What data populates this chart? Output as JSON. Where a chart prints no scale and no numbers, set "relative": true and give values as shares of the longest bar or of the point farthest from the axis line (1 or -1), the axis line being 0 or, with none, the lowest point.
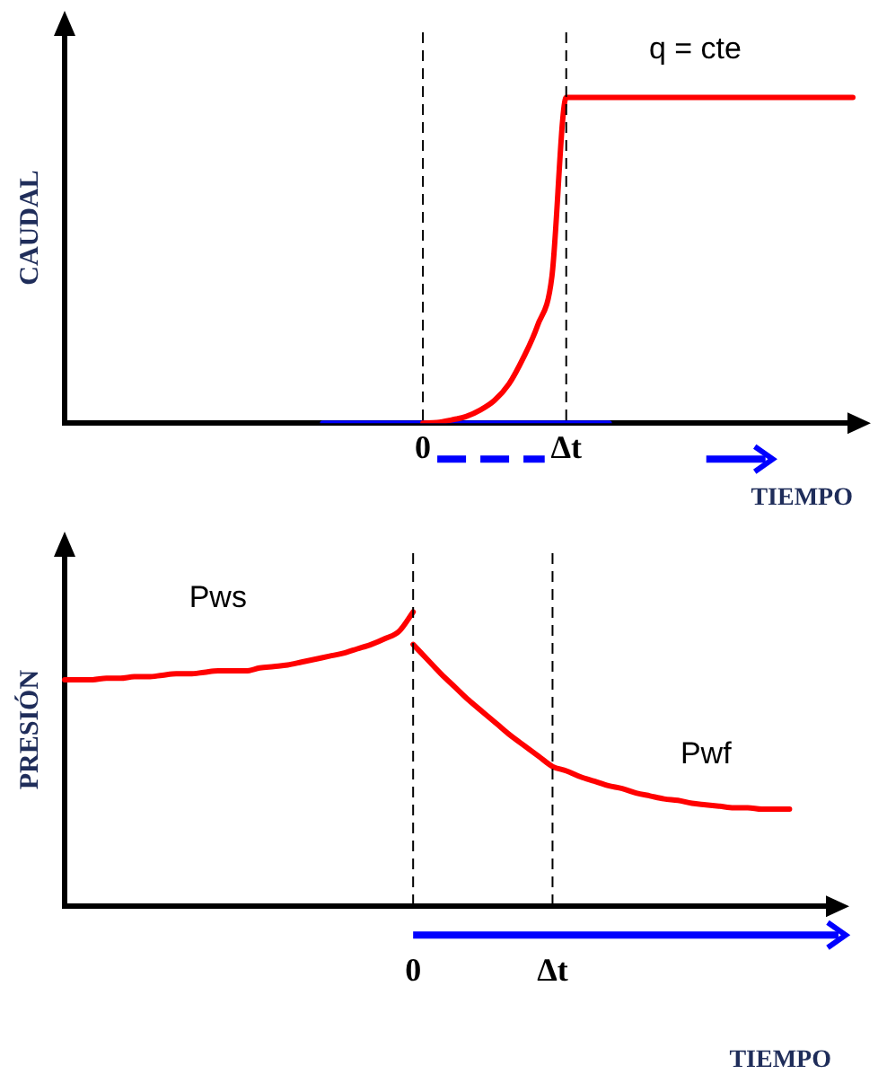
{
  "chart_data": [
    {
      "type": "line",
      "ylabel": "CAUDAL",
      "xlabel": "TIEMPO",
      "relative": true,
      "grid": false,
      "legend": false,
      "marker": "none",
      "line_style": "solid",
      "categories": [
        null,
        null,
        null,
        null,
        null,
        null,
        null,
        null,
        null,
        null,
        null,
        null,
        null,
        null,
        null,
        null,
        null,
        null,
        null,
        null,
        null,
        null,
        null,
        null,
        null,
        "0",
        null,
        null,
        null,
        null,
        null,
        null,
        null,
        null,
        null,
        "Δt",
        null,
        null,
        null,
        null,
        null,
        null,
        null,
        null,
        null,
        null,
        null,
        null,
        null,
        null,
        null,
        null,
        null,
        null,
        null,
        null
      ],
      "annotations": [
        "q = cte"
      ],
      "ref_lines": [
        {
          "axis": "x",
          "value": "0",
          "color": "#000000",
          "line_style": "dashed"
        },
        {
          "axis": "x",
          "value": "Δt",
          "color": "#000000",
          "line_style": "dashed"
        }
      ],
      "series": [
        {
          "color": "#ff0000",
          "values": [
            null,
            null,
            null,
            null,
            null,
            null,
            null,
            null,
            null,
            null,
            null,
            null,
            null,
            null,
            null,
            null,
            null,
            null,
            null,
            null,
            null,
            null,
            null,
            null,
            null,
            0,
            0.002,
            0.01,
            0.02,
            0.04,
            0.07,
            0.12,
            0.2,
            0.3,
            0.45,
            1,
            1,
            1,
            1,
            1,
            1,
            1,
            1,
            1,
            1,
            1,
            1,
            1,
            1,
            1,
            1,
            1,
            1,
            1,
            1,
            1
          ]
        },
        {
          "color": "#0000ff",
          "values": [
            null,
            null,
            null,
            null,
            null,
            null,
            null,
            null,
            null,
            null,
            null,
            null,
            null,
            null,
            null,
            null,
            null,
            null,
            0,
            0,
            0,
            0,
            0,
            0,
            0,
            0,
            0,
            0,
            0,
            0,
            0,
            0,
            0,
            0,
            0,
            0,
            0,
            0,
            0,
            null,
            null,
            null,
            null,
            null,
            null,
            null,
            null,
            null,
            null,
            null,
            null,
            null,
            null,
            null,
            null,
            null
          ]
        }
      ]
    },
    {
      "type": "line",
      "ylabel": "PRESIÓN",
      "xlabel": "TIEMPO",
      "relative": true,
      "grid": false,
      "legend": false,
      "marker": "none",
      "line_style": "solid",
      "categories": [
        null,
        null,
        null,
        null,
        null,
        null,
        null,
        null,
        null,
        null,
        null,
        null,
        null,
        null,
        null,
        null,
        null,
        null,
        null,
        null,
        null,
        null,
        null,
        null,
        null,
        "0",
        null,
        null,
        null,
        null,
        null,
        null,
        null,
        null,
        null,
        "Δt",
        null,
        null,
        null,
        null,
        null,
        null,
        null,
        null,
        null,
        null,
        null,
        null,
        null,
        null,
        null,
        null,
        null,
        null,
        null,
        null
      ],
      "ref_lines": [
        {
          "axis": "x",
          "value": "0",
          "color": "#000000",
          "line_style": "dashed"
        },
        {
          "axis": "x",
          "value": "Δt",
          "color": "#000000",
          "line_style": "dashed"
        }
      ],
      "series": [
        {
          "name": "Pws",
          "color": "#ff0000",
          "values": [
            0.77,
            0.77,
            0.77,
            0.775,
            0.775,
            0.78,
            0.78,
            0.785,
            0.79,
            0.79,
            0.795,
            0.8,
            0.8,
            0.8,
            0.81,
            0.815,
            0.82,
            0.83,
            0.84,
            0.85,
            0.86,
            0.875,
            0.89,
            0.91,
            0.935,
            1,
            null,
            null,
            null,
            null,
            null,
            null,
            null,
            null,
            null,
            null,
            null,
            null,
            null,
            null,
            null,
            null,
            null,
            null,
            null,
            null,
            null,
            null,
            null,
            null,
            null,
            null,
            null,
            null,
            null,
            null
          ]
        },
        {
          "name": "Pwf",
          "color": "#ff0000",
          "values": [
            null,
            null,
            null,
            null,
            null,
            null,
            null,
            null,
            null,
            null,
            null,
            null,
            null,
            null,
            null,
            null,
            null,
            null,
            null,
            null,
            null,
            null,
            null,
            null,
            null,
            0.89,
            0.84,
            0.79,
            0.745,
            0.7,
            0.66,
            0.62,
            0.58,
            0.545,
            0.51,
            0.475,
            0.46,
            0.44,
            0.425,
            0.41,
            0.4,
            0.385,
            0.375,
            0.365,
            0.36,
            0.35,
            0.345,
            0.34,
            0.335,
            0.335,
            0.33,
            0.33,
            0.33,
            null,
            null,
            null
          ]
        }
      ]
    }
  ]
}
